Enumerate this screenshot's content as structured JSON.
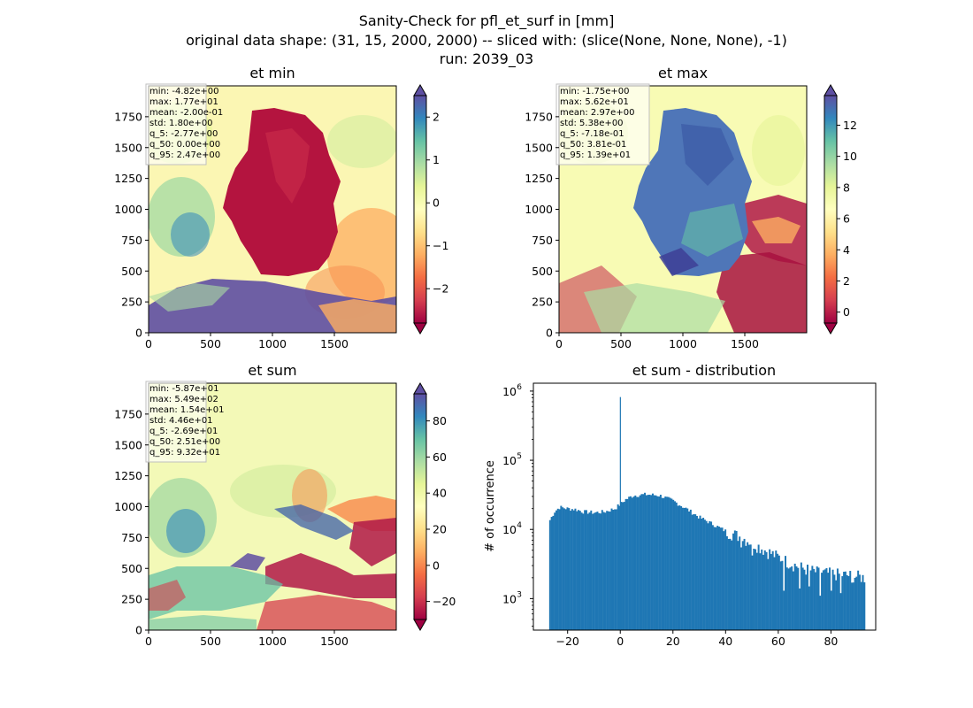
{
  "figure": {
    "title_lines": [
      "Sanity-Check for pfl_et_surf in [mm]",
      "original data shape: (31, 15, 2000, 2000) -- sliced with: (slice(None, None, None), -1)",
      "run: 2039_03"
    ]
  },
  "chart_data": [
    {
      "type": "heatmap",
      "title": "et min",
      "x_ticks": [
        "0",
        "500",
        "1000",
        "1500"
      ],
      "y_ticks": [
        "0",
        "250",
        "500",
        "750",
        "1000",
        "1250",
        "1500",
        "1750"
      ],
      "xlim": [
        0,
        2000
      ],
      "ylim": [
        0,
        2000
      ],
      "colormap": "Spectral",
      "colorbar": {
        "range": [
          -2.8,
          2.5
        ],
        "ticks": [
          "−2",
          "−1",
          "0",
          "1",
          "2"
        ],
        "tick_values": [
          -2,
          -1,
          0,
          1,
          2
        ],
        "extend": "both"
      },
      "stats": [
        "min: -4.82e+00",
        "max: 1.77e+01",
        "mean: -2.00e-01",
        "std: 1.80e+00",
        "q_5: -2.77e+00",
        "q_50: 0.00e+00",
        "q_95: 2.47e+00"
      ]
    },
    {
      "type": "heatmap",
      "title": "et max",
      "x_ticks": [
        "0",
        "500",
        "1000",
        "1500"
      ],
      "y_ticks": [
        "0",
        "250",
        "500",
        "750",
        "1000",
        "1250",
        "1500",
        "1750"
      ],
      "xlim": [
        0,
        2000
      ],
      "ylim": [
        0,
        2000
      ],
      "colormap": "Spectral",
      "colorbar": {
        "range": [
          -0.7,
          13.9
        ],
        "ticks": [
          "0",
          "2",
          "4",
          "6",
          "8",
          "10",
          "12"
        ],
        "tick_values": [
          0,
          2,
          4,
          6,
          8,
          10,
          12
        ],
        "extend": "both"
      },
      "stats": [
        "min: -1.75e+00",
        "max: 5.62e+01",
        "mean: 2.97e+00",
        "std: 5.38e+00",
        "q_5: -7.18e-01",
        "q_50: 3.81e-01",
        "q_95: 1.39e+01"
      ]
    },
    {
      "type": "heatmap",
      "title": "et sum",
      "x_ticks": [
        "0",
        "500",
        "1000",
        "1500"
      ],
      "y_ticks": [
        "0",
        "250",
        "500",
        "750",
        "1000",
        "1250",
        "1500",
        "1750"
      ],
      "xlim": [
        0,
        2000
      ],
      "ylim": [
        0,
        2000
      ],
      "colormap": "Spectral",
      "colorbar": {
        "range": [
          -30,
          95
        ],
        "ticks": [
          "−20",
          "0",
          "20",
          "40",
          "60",
          "80"
        ],
        "tick_values": [
          -20,
          0,
          20,
          40,
          60,
          80
        ],
        "extend": "both"
      },
      "stats": [
        "min: -5.87e+01",
        "max: 5.49e+02",
        "mean: 1.54e+01",
        "std: 4.46e+01",
        "q_5: -2.69e+01",
        "q_50: 2.51e+00",
        "q_95: 9.32e+01"
      ]
    },
    {
      "type": "bar",
      "title": "et sum - distribution",
      "xlabel": "",
      "ylabel": "# of occurrence",
      "y_scale": "log",
      "xlim": [
        -33,
        97
      ],
      "ylim": [
        350,
        1300000
      ],
      "x_ticks": [
        "−20",
        "0",
        "20",
        "40",
        "60",
        "80"
      ],
      "x_tick_values": [
        -20,
        0,
        20,
        40,
        60,
        80
      ],
      "y_tick_values": [
        1000,
        10000,
        100000,
        1000000
      ],
      "y_tick_base": "10",
      "y_tick_exponents": [
        "3",
        "4",
        "5",
        "6"
      ],
      "bar_color": "#1f77b4",
      "bins": {
        "start": -27,
        "end": 93,
        "count": 200
      },
      "anchors": [
        [
          -27,
          13000
        ],
        [
          -25,
          18000
        ],
        [
          -23,
          21000
        ],
        [
          -20,
          20000
        ],
        [
          -17,
          19500
        ],
        [
          -14,
          18000
        ],
        [
          -10,
          17500
        ],
        [
          -6,
          18000
        ],
        [
          -2,
          20000
        ],
        [
          2,
          27000
        ],
        [
          5,
          31000
        ],
        [
          10,
          32000
        ],
        [
          15,
          31000
        ],
        [
          20,
          26000
        ],
        [
          25,
          20000
        ],
        [
          30,
          15000
        ],
        [
          35,
          12000
        ],
        [
          40,
          9500
        ],
        [
          45,
          8000
        ],
        [
          50,
          6500
        ],
        [
          55,
          5000
        ],
        [
          60,
          4000
        ],
        [
          65,
          3200
        ],
        [
          70,
          2700
        ],
        [
          75,
          2400
        ],
        [
          80,
          2300
        ],
        [
          85,
          2200
        ],
        [
          90,
          2100
        ],
        [
          93,
          2000
        ]
      ],
      "spikes": [
        [
          0,
          820000
        ]
      ],
      "dips": [
        [
          62,
          1300
        ],
        [
          68,
          1400
        ],
        [
          72,
          1500
        ],
        [
          76,
          1100
        ],
        [
          80,
          1300
        ],
        [
          84,
          1200
        ],
        [
          88,
          1700
        ],
        [
          50,
          4200
        ],
        [
          46,
          5500
        ]
      ]
    }
  ]
}
